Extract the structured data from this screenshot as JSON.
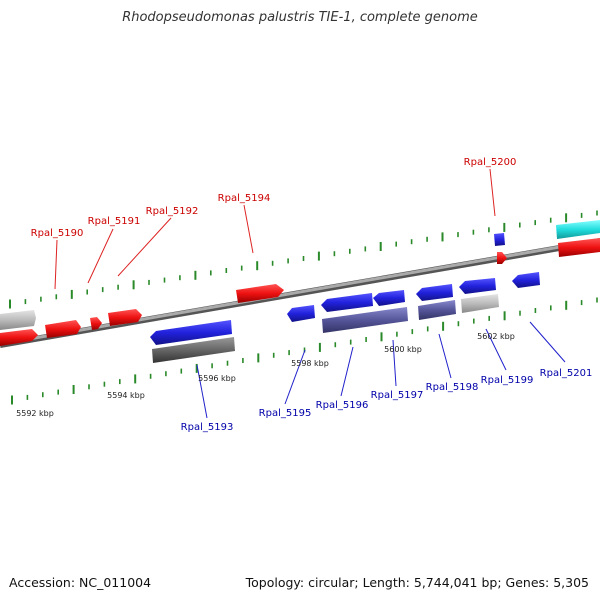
{
  "title": "Rhodopseudomonas palustris TIE-1, complete genome",
  "accession": "Accession: NC_011004",
  "topology": "Topology: circular; Length: 5,744,041 bp; Genes: 5,305",
  "colors": {
    "backbone": "#8a8a8a",
    "tick": "#2a8a2a",
    "forward_gene": "#ee1111",
    "reverse_gene": "#2222dd",
    "pseudo_gene": "#bbbbbb",
    "rna_gene": "#22dddd",
    "cds_dark_blue": "#55559a",
    "cds_dark_gray": "#666666"
  },
  "scale_labels": [
    "5592 kbp",
    "5594 kbp",
    "5596 kbp",
    "5598 kbp",
    "5600 kbp",
    "5602 kbp"
  ],
  "gene_labels": {
    "forward": [
      "Rpal_5190",
      "Rpal_5191",
      "Rpal_5192",
      "Rpal_5194",
      "Rpal_5200"
    ],
    "reverse": [
      "Rpal_5193",
      "Rpal_5195",
      "Rpal_5196",
      "Rpal_5197",
      "Rpal_5198",
      "Rpal_5199",
      "Rpal_5201"
    ]
  }
}
